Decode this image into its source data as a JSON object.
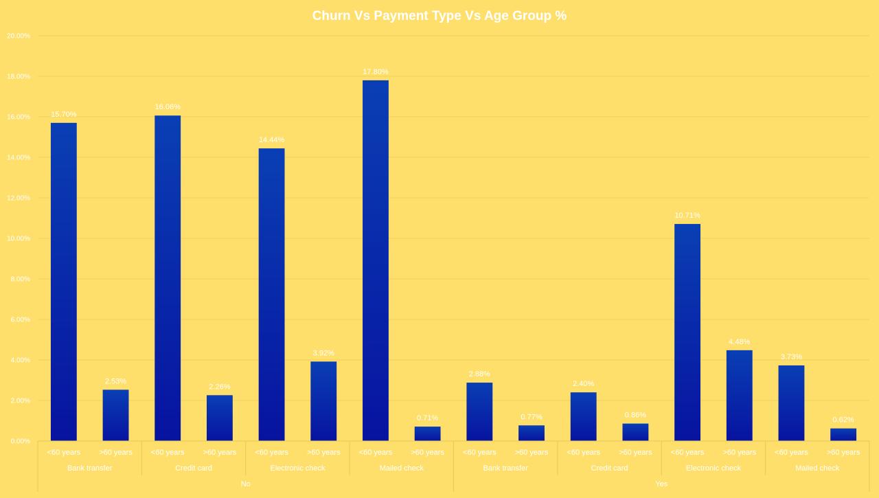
{
  "chart_data": {
    "type": "bar",
    "title": "Churn Vs Payment Type Vs Age Group %",
    "xlabel": "",
    "ylabel": "",
    "ylim": [
      0,
      20
    ],
    "yticks": [
      "0.00%",
      "2.00%",
      "4.00%",
      "6.00%",
      "8.00%",
      "10.00%",
      "12.00%",
      "14.00%",
      "16.00%",
      "18.00%",
      "20.00%"
    ],
    "grid": false,
    "legend": "none",
    "bar_color": "#0A2DB0",
    "groups": [
      {
        "label": "No",
        "subgroups": [
          {
            "label": "Bank transfer",
            "bars": [
              {
                "label": "<60 years",
                "value": 15.7,
                "text": "15.70%"
              },
              {
                "label": ">60 years",
                "value": 2.53,
                "text": "2.53%"
              }
            ]
          },
          {
            "label": "Credit card",
            "bars": [
              {
                "label": "<60 years",
                "value": 16.06,
                "text": "16.06%"
              },
              {
                "label": ">60 years",
                "value": 2.26,
                "text": "2.26%"
              }
            ]
          },
          {
            "label": "Electronic check",
            "bars": [
              {
                "label": "<60 years",
                "value": 14.44,
                "text": "14.44%"
              },
              {
                "label": ">60 years",
                "value": 3.92,
                "text": "3.92%"
              }
            ]
          },
          {
            "label": "Mailed check",
            "bars": [
              {
                "label": "<60 years",
                "value": 17.8,
                "text": "17.80%"
              },
              {
                "label": ">60 years",
                "value": 0.71,
                "text": "0.71%"
              }
            ]
          }
        ]
      },
      {
        "label": "Yes",
        "subgroups": [
          {
            "label": "Bank transfer",
            "bars": [
              {
                "label": "<60 years",
                "value": 2.88,
                "text": "2.88%"
              },
              {
                "label": ">60 years",
                "value": 0.77,
                "text": "0.77%"
              }
            ]
          },
          {
            "label": "Credit card",
            "bars": [
              {
                "label": "<60 years",
                "value": 2.4,
                "text": "2.40%"
              },
              {
                "label": ">60 years",
                "value": 0.86,
                "text": "0.86%"
              }
            ]
          },
          {
            "label": "Electronic check",
            "bars": [
              {
                "label": "<60 years",
                "value": 10.71,
                "text": "10.71%"
              },
              {
                "label": ">60 years",
                "value": 4.48,
                "text": "4.48%"
              }
            ]
          },
          {
            "label": "Mailed check",
            "bars": [
              {
                "label": "<60 years",
                "value": 3.73,
                "text": "3.73%"
              },
              {
                "label": ">60 years",
                "value": 0.62,
                "text": "0.62%"
              }
            ]
          }
        ]
      }
    ]
  }
}
